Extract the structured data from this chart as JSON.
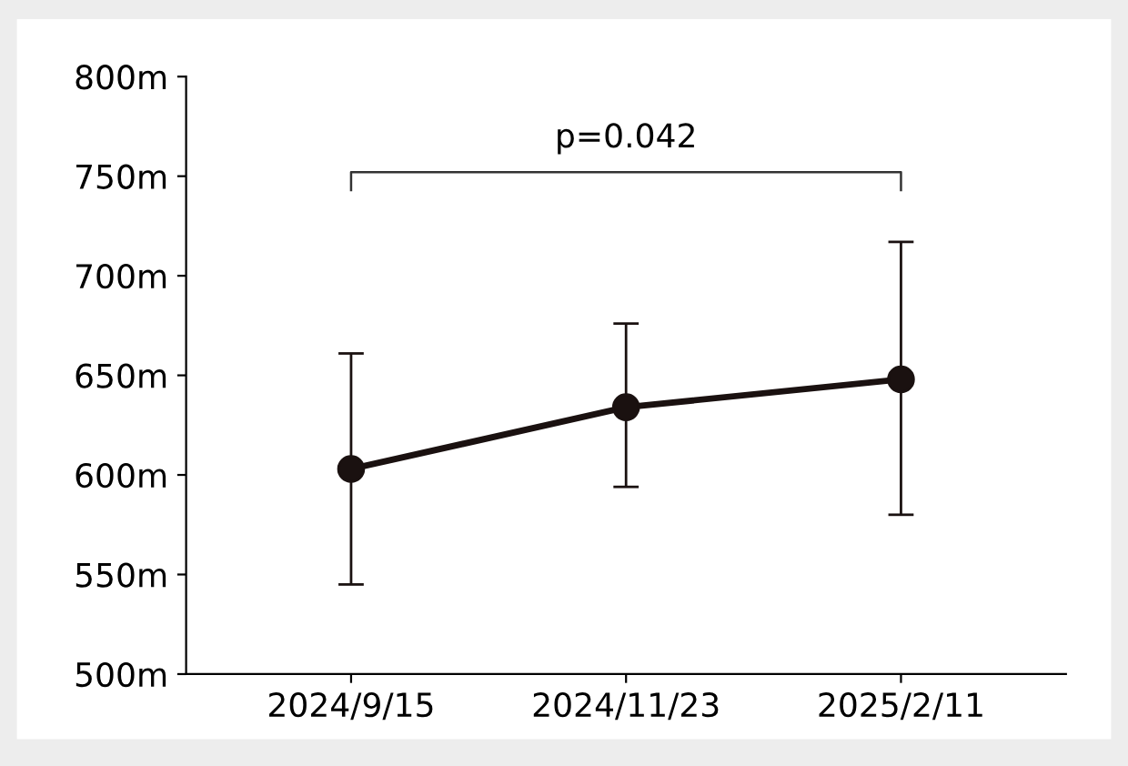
{
  "chart_data": {
    "type": "line",
    "categories": [
      "2024/9/15",
      "2024/11/23",
      "2025/2/11"
    ],
    "series": [
      {
        "color": "#1a1110",
        "values": [
          603,
          634,
          648
        ],
        "errors": [
          [
            545,
            661
          ],
          [
            594,
            676
          ],
          [
            580,
            717
          ]
        ]
      }
    ],
    "ylim": [
      500,
      800
    ],
    "yticks": [
      {
        "value": 500,
        "label": "500m"
      },
      {
        "value": 550,
        "label": "550m"
      },
      {
        "value": 600,
        "label": "600m"
      },
      {
        "value": 650,
        "label": "650m"
      },
      {
        "value": 700,
        "label": "700m"
      },
      {
        "value": 750,
        "label": "750m"
      },
      {
        "value": 800,
        "label": "800m"
      }
    ],
    "annotations": [
      "p=0.042"
    ],
    "marker": "circle",
    "line_style": "solid",
    "grid": false,
    "legend": false
  }
}
